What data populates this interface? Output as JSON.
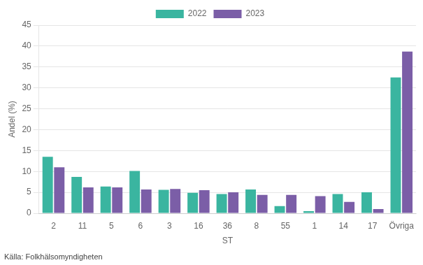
{
  "chart_data": {
    "type": "bar",
    "categories": [
      "2",
      "11",
      "5",
      "6",
      "3",
      "16",
      "36",
      "8",
      "55",
      "1",
      "14",
      "17",
      "Övriga"
    ],
    "series": [
      {
        "name": "2022",
        "color": "#3ab5a0",
        "values": [
          13.5,
          8.7,
          6.4,
          10.1,
          5.6,
          4.9,
          4.6,
          5.7,
          1.7,
          0.5,
          4.6,
          5.0,
          32.5
        ]
      },
      {
        "name": "2023",
        "color": "#7b5ea7",
        "values": [
          11.0,
          6.2,
          6.2,
          5.7,
          5.8,
          5.5,
          5.0,
          4.4,
          4.4,
          4.1,
          2.7,
          1.0,
          38.7
        ]
      }
    ],
    "xlabel": "ST",
    "ylabel": "Andel (%)",
    "annotations": [
      "Källa: Folkhälsomyndigheten"
    ],
    "ylim": [
      0,
      45
    ],
    "yticks": [
      0,
      5,
      10,
      15,
      20,
      25,
      30,
      35,
      40,
      45
    ],
    "grid": true,
    "legend": "top"
  }
}
